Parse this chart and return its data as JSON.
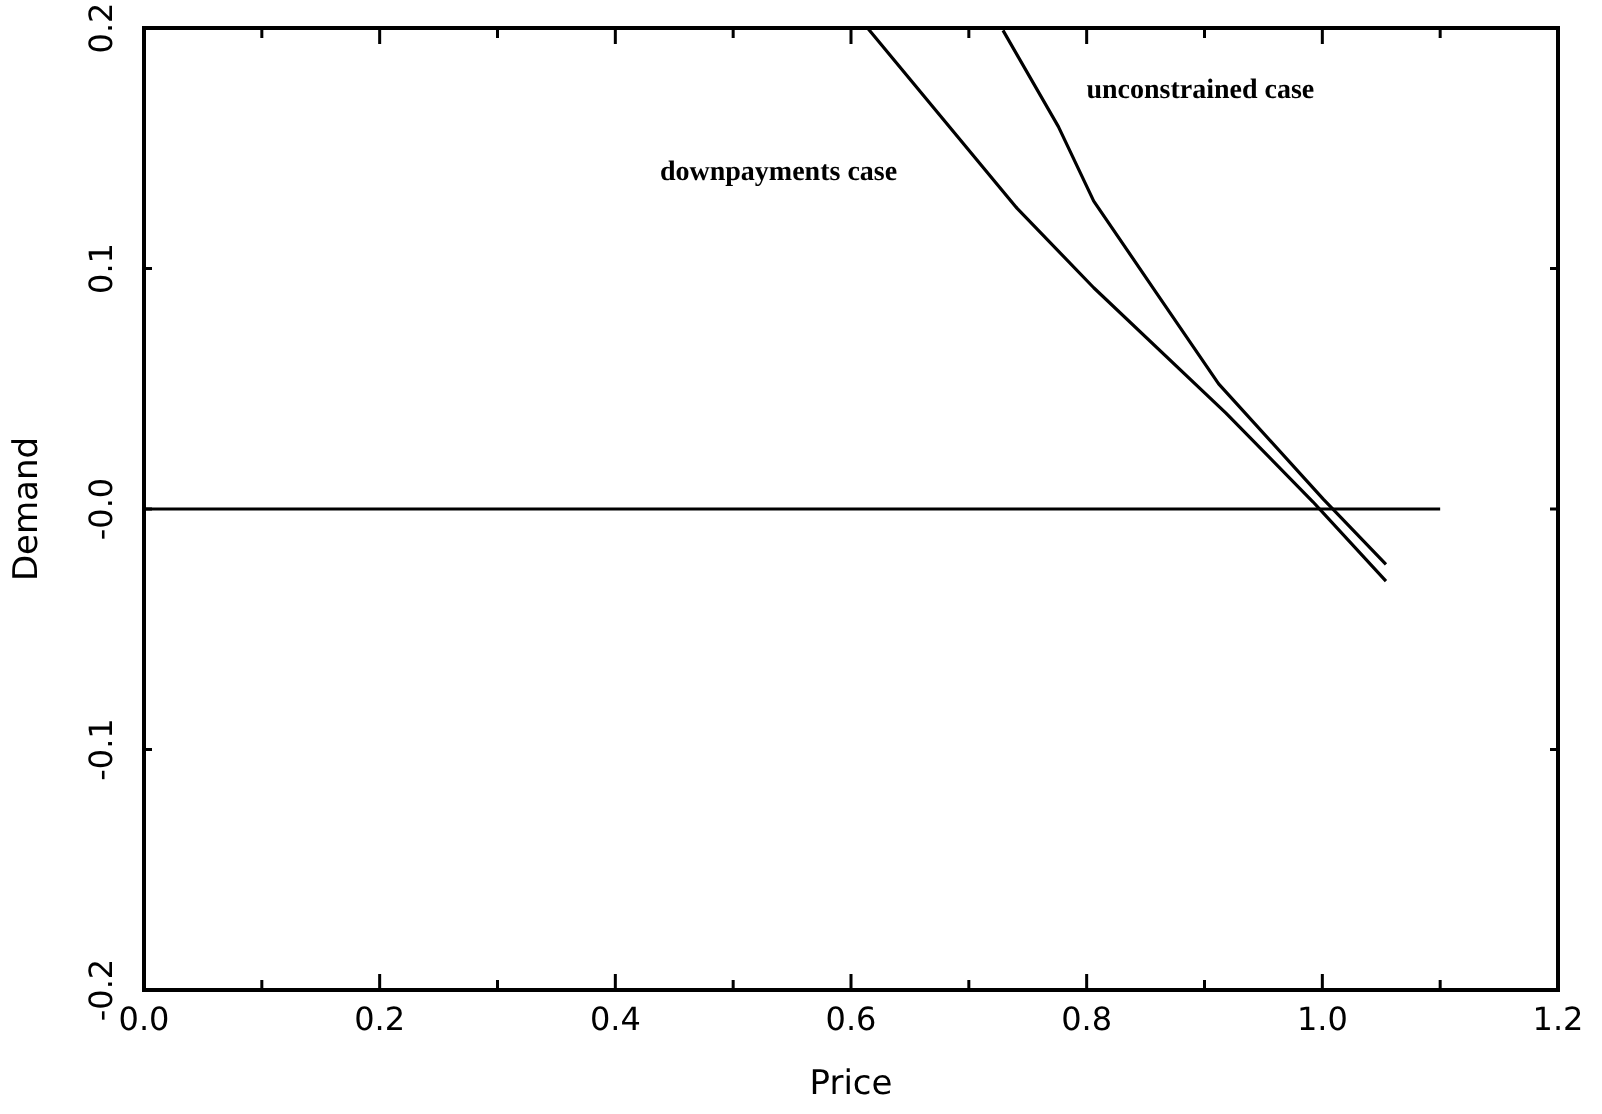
{
  "chart_data": {
    "type": "line",
    "xlabel": "Price",
    "ylabel": "Demand",
    "xlim": [
      0,
      1.2
    ],
    "ylim": [
      -0.2,
      0.2
    ],
    "xticks": [
      {
        "value": 0,
        "label": "0.0"
      },
      {
        "value": 0.1,
        "label": null
      },
      0.2,
      {
        "value": 0.3,
        "label": null
      },
      0.4,
      {
        "value": 0.5,
        "label": null
      },
      0.6,
      {
        "value": 0.7,
        "label": null
      },
      0.8,
      {
        "value": 0.9,
        "label": null
      },
      {
        "value": 1,
        "label": "1.0"
      },
      {
        "value": 1.1,
        "label": null
      },
      1.2
    ],
    "yticks": [
      -0.2,
      -0.1,
      {
        "value": 0,
        "label": "-0.0"
      },
      0.1,
      0.2
    ],
    "series": [
      {
        "color": "#000000",
        "x": [
          0,
          1.1
        ],
        "values": [
          0,
          0
        ]
      },
      {
        "name": "downpayments case",
        "color": "#000000",
        "x": [
          0.614,
          0.741,
          0.806,
          0.918,
          0.992,
          1.054
        ],
        "values": [
          0.2,
          0.125,
          0.092,
          0.04,
          0.003,
          -0.03
        ]
      },
      {
        "name": "unconstrained case",
        "color": "#000000",
        "x": [
          0.729,
          0.776,
          0.806,
          0.859,
          0.912,
          1.001,
          1.054
        ],
        "values": [
          0.199,
          0.159,
          0.128,
          0.09,
          0.052,
          0.004,
          -0.023
        ]
      }
    ]
  }
}
